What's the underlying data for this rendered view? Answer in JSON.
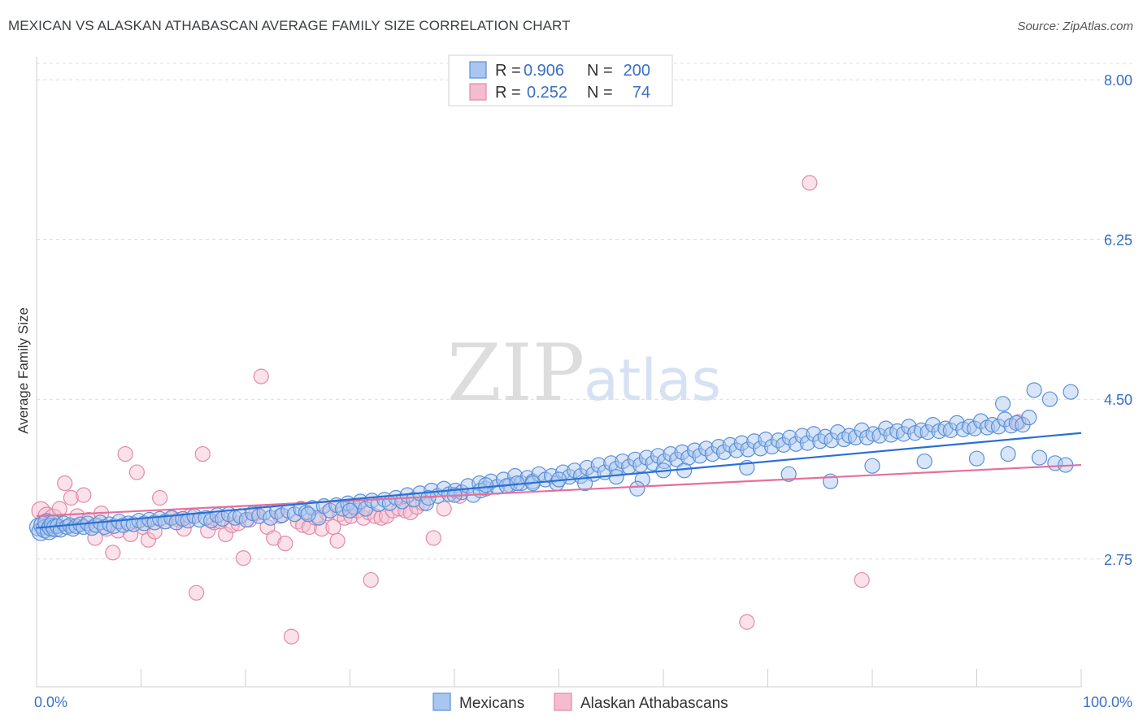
{
  "header": {
    "title": "MEXICAN VS ALASKAN ATHABASCAN AVERAGE FAMILY SIZE CORRELATION CHART",
    "source": "Source: ZipAtlas.com"
  },
  "watermark": {
    "zip": "ZIP",
    "atlas": "atlas"
  },
  "colors": {
    "mexicans_fill": "#a9c6f0",
    "mexicans_stroke": "#5b8fd6",
    "mexicans_line": "#2a6fd4",
    "athabascans_fill": "#f5bcd0",
    "athabascans_stroke": "#e289a8",
    "athabascans_line": "#e66f9a",
    "tick_label": "#3a6fc4",
    "grid": "#dcdcdc"
  },
  "legend": {
    "rows": [
      {
        "r_label": "R =",
        "r_value": "0.906",
        "n_label": "N =",
        "n_value": "200"
      },
      {
        "r_label": "R =",
        "r_value": "0.252",
        "n_label": "N =",
        "n_value": "74"
      }
    ]
  },
  "chart_data": {
    "type": "scatter",
    "xlabel": "",
    "ylabel": "Average Family Size",
    "xlim": [
      0,
      100
    ],
    "ylim": [
      1.35,
      8.25
    ],
    "x_tick_labels": [
      "0.0%",
      "100.0%"
    ],
    "y_ticks": [
      2.75,
      4.5,
      6.25,
      8.0
    ],
    "y_tick_labels": [
      "2.75",
      "4.50",
      "6.25",
      "8.00"
    ],
    "grid": "horizontal dashed",
    "legend_position": "top-center",
    "series": [
      {
        "name": "Mexicans",
        "trend": {
          "x": [
            0,
            100
          ],
          "y": [
            3.09,
            4.13
          ]
        },
        "points": [
          [
            0.2,
            3.1
          ],
          [
            0.4,
            3.05
          ],
          [
            0.6,
            3.12
          ],
          [
            0.8,
            3.08
          ],
          [
            1.0,
            3.15
          ],
          [
            1.2,
            3.06
          ],
          [
            1.4,
            3.1
          ],
          [
            1.6,
            3.13
          ],
          [
            1.8,
            3.09
          ],
          [
            2.0,
            3.11
          ],
          [
            2.3,
            3.07
          ],
          [
            2.6,
            3.14
          ],
          [
            2.9,
            3.1
          ],
          [
            3.2,
            3.12
          ],
          [
            3.5,
            3.08
          ],
          [
            3.8,
            3.11
          ],
          [
            4.2,
            3.13
          ],
          [
            4.5,
            3.1
          ],
          [
            4.9,
            3.14
          ],
          [
            5.3,
            3.09
          ],
          [
            5.7,
            3.12
          ],
          [
            6.1,
            3.15
          ],
          [
            6.5,
            3.1
          ],
          [
            7.0,
            3.13
          ],
          [
            7.4,
            3.11
          ],
          [
            7.9,
            3.16
          ],
          [
            8.3,
            3.12
          ],
          [
            8.8,
            3.14
          ],
          [
            9.3,
            3.13
          ],
          [
            9.8,
            3.17
          ],
          [
            10.3,
            3.14
          ],
          [
            10.8,
            3.18
          ],
          [
            11.3,
            3.15
          ],
          [
            11.8,
            3.19
          ],
          [
            12.3,
            3.16
          ],
          [
            12.9,
            3.2
          ],
          [
            13.4,
            3.15
          ],
          [
            14.0,
            3.19
          ],
          [
            14.5,
            3.17
          ],
          [
            15.1,
            3.22
          ],
          [
            15.6,
            3.18
          ],
          [
            16.2,
            3.2
          ],
          [
            16.7,
            3.17
          ],
          [
            17.3,
            3.23
          ],
          [
            17.8,
            3.19
          ],
          [
            18.4,
            3.24
          ],
          [
            19.0,
            3.2
          ],
          [
            19.5,
            3.22
          ],
          [
            20.1,
            3.18
          ],
          [
            20.7,
            3.25
          ],
          [
            21.3,
            3.22
          ],
          [
            21.8,
            3.26
          ],
          [
            22.4,
            3.2
          ],
          [
            23.0,
            3.27
          ],
          [
            23.5,
            3.23
          ],
          [
            24.1,
            3.28
          ],
          [
            24.7,
            3.24
          ],
          [
            25.3,
            3.3
          ],
          [
            25.8,
            3.26
          ],
          [
            26.4,
            3.31
          ],
          [
            27.0,
            3.2
          ],
          [
            27.5,
            3.33
          ],
          [
            28.1,
            3.28
          ],
          [
            28.7,
            3.34
          ],
          [
            29.3,
            3.3
          ],
          [
            29.8,
            3.36
          ],
          [
            30.4,
            3.32
          ],
          [
            31.0,
            3.38
          ],
          [
            31.5,
            3.3
          ],
          [
            32.1,
            3.39
          ],
          [
            32.7,
            3.35
          ],
          [
            33.3,
            3.4
          ],
          [
            33.8,
            3.36
          ],
          [
            34.4,
            3.42
          ],
          [
            35.0,
            3.38
          ],
          [
            35.5,
            3.45
          ],
          [
            36.1,
            3.4
          ],
          [
            36.7,
            3.47
          ],
          [
            37.3,
            3.36
          ],
          [
            37.8,
            3.5
          ],
          [
            38.4,
            3.44
          ],
          [
            39.0,
            3.52
          ],
          [
            39.5,
            3.46
          ],
          [
            40.1,
            3.5
          ],
          [
            40.7,
            3.48
          ],
          [
            41.3,
            3.55
          ],
          [
            41.8,
            3.45
          ],
          [
            42.4,
            3.58
          ],
          [
            43.0,
            3.52
          ],
          [
            43.5,
            3.6
          ],
          [
            44.1,
            3.54
          ],
          [
            44.7,
            3.62
          ],
          [
            45.3,
            3.56
          ],
          [
            45.8,
            3.66
          ],
          [
            46.4,
            3.58
          ],
          [
            47.0,
            3.64
          ],
          [
            47.5,
            3.6
          ],
          [
            48.1,
            3.68
          ],
          [
            48.7,
            3.62
          ],
          [
            49.3,
            3.66
          ],
          [
            49.8,
            3.58
          ],
          [
            50.4,
            3.7
          ],
          [
            51.0,
            3.65
          ],
          [
            51.5,
            3.72
          ],
          [
            52.1,
            3.66
          ],
          [
            52.7,
            3.75
          ],
          [
            53.3,
            3.68
          ],
          [
            53.8,
            3.78
          ],
          [
            54.4,
            3.7
          ],
          [
            55.0,
            3.8
          ],
          [
            55.5,
            3.74
          ],
          [
            56.1,
            3.82
          ],
          [
            56.7,
            3.76
          ],
          [
            57.3,
            3.84
          ],
          [
            57.8,
            3.78
          ],
          [
            58.4,
            3.86
          ],
          [
            59.0,
            3.8
          ],
          [
            59.5,
            3.88
          ],
          [
            60.1,
            3.82
          ],
          [
            60.7,
            3.9
          ],
          [
            61.3,
            3.84
          ],
          [
            61.8,
            3.92
          ],
          [
            62.4,
            3.86
          ],
          [
            63.0,
            3.94
          ],
          [
            63.5,
            3.88
          ],
          [
            64.1,
            3.96
          ],
          [
            64.7,
            3.9
          ],
          [
            65.3,
            3.98
          ],
          [
            65.8,
            3.92
          ],
          [
            66.4,
            4.0
          ],
          [
            67.0,
            3.94
          ],
          [
            67.5,
            4.02
          ],
          [
            68.1,
            3.95
          ],
          [
            68.7,
            4.04
          ],
          [
            69.3,
            3.96
          ],
          [
            69.8,
            4.06
          ],
          [
            70.4,
            3.98
          ],
          [
            71.0,
            4.05
          ],
          [
            71.5,
            4.0
          ],
          [
            72.1,
            4.08
          ],
          [
            72.7,
            4.01
          ],
          [
            73.3,
            4.1
          ],
          [
            73.8,
            4.02
          ],
          [
            74.4,
            4.12
          ],
          [
            75.0,
            4.04
          ],
          [
            75.5,
            4.09
          ],
          [
            76.1,
            4.05
          ],
          [
            76.7,
            4.14
          ],
          [
            77.3,
            4.06
          ],
          [
            77.8,
            4.1
          ],
          [
            78.4,
            4.08
          ],
          [
            79.0,
            4.16
          ],
          [
            79.5,
            4.08
          ],
          [
            80.1,
            4.12
          ],
          [
            80.7,
            4.1
          ],
          [
            81.3,
            4.18
          ],
          [
            81.8,
            4.11
          ],
          [
            82.4,
            4.15
          ],
          [
            83.0,
            4.12
          ],
          [
            83.5,
            4.2
          ],
          [
            84.1,
            4.13
          ],
          [
            84.7,
            4.16
          ],
          [
            85.3,
            4.14
          ],
          [
            85.8,
            4.22
          ],
          [
            86.4,
            4.15
          ],
          [
            87.0,
            4.18
          ],
          [
            87.5,
            4.16
          ],
          [
            88.1,
            4.24
          ],
          [
            88.7,
            4.17
          ],
          [
            89.3,
            4.2
          ],
          [
            89.8,
            4.18
          ],
          [
            90.4,
            4.26
          ],
          [
            91.0,
            4.19
          ],
          [
            91.5,
            4.22
          ],
          [
            92.1,
            4.2
          ],
          [
            92.7,
            4.28
          ],
          [
            93.3,
            4.21
          ],
          [
            93.8,
            4.24
          ],
          [
            94.4,
            4.22
          ],
          [
            95.0,
            4.3
          ],
          [
            62.0,
            3.72
          ],
          [
            68.0,
            3.75
          ],
          [
            72.0,
            3.68
          ],
          [
            76.0,
            3.6
          ],
          [
            80.0,
            3.77
          ],
          [
            85.0,
            3.82
          ],
          [
            90.0,
            3.85
          ],
          [
            93.0,
            3.9
          ],
          [
            96.0,
            3.86
          ],
          [
            97.5,
            3.8
          ],
          [
            55.5,
            3.65
          ],
          [
            58.0,
            3.62
          ],
          [
            60.0,
            3.72
          ],
          [
            52.5,
            3.58
          ],
          [
            50.0,
            3.62
          ],
          [
            47.5,
            3.58
          ],
          [
            45.0,
            3.55
          ],
          [
            42.5,
            3.5
          ],
          [
            40.0,
            3.45
          ],
          [
            37.5,
            3.42
          ],
          [
            92.5,
            4.45
          ],
          [
            95.5,
            4.6
          ],
          [
            97.0,
            4.5
          ],
          [
            99.0,
            4.58
          ],
          [
            98.5,
            3.78
          ],
          [
            46.0,
            3.58
          ],
          [
            43.0,
            3.56
          ],
          [
            57.5,
            3.52
          ],
          [
            30.0,
            3.28
          ],
          [
            26.0,
            3.24
          ]
        ]
      },
      {
        "name": "Alaskan Athabascans",
        "trend": {
          "x": [
            0,
            100
          ],
          "y": [
            3.22,
            3.78
          ]
        },
        "points": [
          [
            0.4,
            3.28
          ],
          [
            1.0,
            3.22
          ],
          [
            1.6,
            3.2
          ],
          [
            2.2,
            3.3
          ],
          [
            2.7,
            3.58
          ],
          [
            3.3,
            3.42
          ],
          [
            3.9,
            3.22
          ],
          [
            4.5,
            3.45
          ],
          [
            5.0,
            3.18
          ],
          [
            5.6,
            2.98
          ],
          [
            6.2,
            3.25
          ],
          [
            6.7,
            3.08
          ],
          [
            7.3,
            2.82
          ],
          [
            7.8,
            3.06
          ],
          [
            8.5,
            3.9
          ],
          [
            9.0,
            3.02
          ],
          [
            9.6,
            3.7
          ],
          [
            10.2,
            3.1
          ],
          [
            10.7,
            2.96
          ],
          [
            11.3,
            3.05
          ],
          [
            11.8,
            3.42
          ],
          [
            12.4,
            3.16
          ],
          [
            13.0,
            3.2
          ],
          [
            13.6,
            3.18
          ],
          [
            14.1,
            3.08
          ],
          [
            14.7,
            3.22
          ],
          [
            15.3,
            2.38
          ],
          [
            15.9,
            3.9
          ],
          [
            16.4,
            3.06
          ],
          [
            17.0,
            3.15
          ],
          [
            17.6,
            3.16
          ],
          [
            18.1,
            3.02
          ],
          [
            18.7,
            3.12
          ],
          [
            19.3,
            3.14
          ],
          [
            19.8,
            2.76
          ],
          [
            20.4,
            3.18
          ],
          [
            21.0,
            3.25
          ],
          [
            21.5,
            4.75
          ],
          [
            22.1,
            3.1
          ],
          [
            22.7,
            2.98
          ],
          [
            23.3,
            3.22
          ],
          [
            23.8,
            2.92
          ],
          [
            24.4,
            1.9
          ],
          [
            25.0,
            3.16
          ],
          [
            25.5,
            3.12
          ],
          [
            26.1,
            3.1
          ],
          [
            26.7,
            3.2
          ],
          [
            27.3,
            3.08
          ],
          [
            27.8,
            3.25
          ],
          [
            28.4,
            3.1
          ],
          [
            29.0,
            3.24
          ],
          [
            29.5,
            3.2
          ],
          [
            30.1,
            3.22
          ],
          [
            30.7,
            3.28
          ],
          [
            31.3,
            3.2
          ],
          [
            31.8,
            3.26
          ],
          [
            32.4,
            3.22
          ],
          [
            33.0,
            3.2
          ],
          [
            33.5,
            3.22
          ],
          [
            34.1,
            3.28
          ],
          [
            34.7,
            3.3
          ],
          [
            35.3,
            3.28
          ],
          [
            35.8,
            3.26
          ],
          [
            36.4,
            3.32
          ],
          [
            37.0,
            3.36
          ],
          [
            38.0,
            2.98
          ],
          [
            39.0,
            3.3
          ],
          [
            40.5,
            3.44
          ],
          [
            32.0,
            2.52
          ],
          [
            28.8,
            2.95
          ],
          [
            68.0,
            2.06
          ],
          [
            74.0,
            6.87
          ],
          [
            79.0,
            2.52
          ],
          [
            94.0,
            4.25
          ]
        ]
      }
    ]
  },
  "bottom_legend": {
    "items": [
      "Mexicans",
      "Alaskan Athabascans"
    ]
  }
}
